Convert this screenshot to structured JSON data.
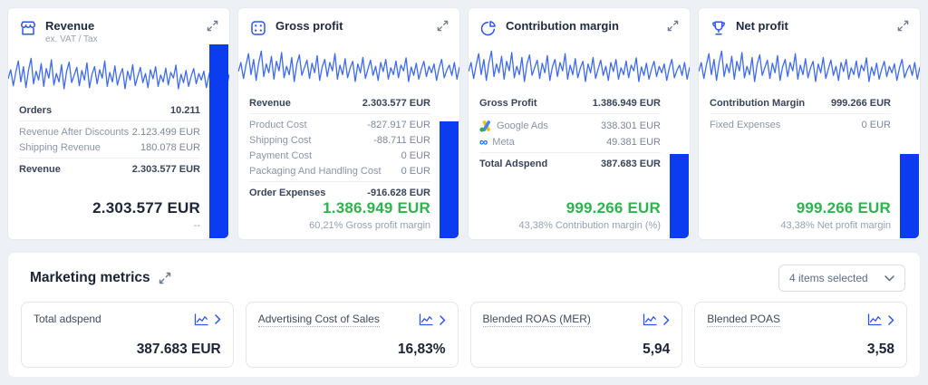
{
  "theme": {
    "accent_blue": "#2f54eb",
    "bar_blue": "#0c3cf0",
    "sparkline_blue": "#3e6af2",
    "positive_green": "#2eb350",
    "dark_text": "#1d2637",
    "muted_icon": "#6e7a8f",
    "google_yellow": "#FBBC04",
    "google_blue": "#4285F4",
    "google_green": "#34A853",
    "meta_blue": "#0866FF"
  },
  "kpi_cards": [
    {
      "title": "Revenue",
      "subtitle": "ex. VAT / Tax",
      "icon": "storefront-icon",
      "bar_percent": 100,
      "rows": [
        {
          "label": "Orders",
          "value": "10.211",
          "bold": true
        },
        {
          "label": "Revenue After Discounts",
          "value": "2.123.499 EUR"
        },
        {
          "label": "Shipping Revenue",
          "value": "180.078 EUR"
        },
        {
          "label": "Revenue",
          "value": "2.303.577 EUR",
          "bold": true
        }
      ],
      "total": "2.303.577 EUR",
      "total_color": "#1d2637",
      "total_sub": "--"
    },
    {
      "title": "Gross profit",
      "icon": "calculator-icon",
      "bar_percent": 60.21,
      "rows": [
        {
          "label": "Revenue",
          "value": "2.303.577 EUR",
          "bold": true
        },
        {
          "label": "Product Cost",
          "value": "-827.917 EUR"
        },
        {
          "label": "Shipping Cost",
          "value": "-88.711 EUR"
        },
        {
          "label": "Payment Cost",
          "value": "0 EUR"
        },
        {
          "label": "Packaging And Handling Cost",
          "value": "0 EUR"
        },
        {
          "label": "Order Expenses",
          "value": "-916.628 EUR",
          "bold": true
        }
      ],
      "total": "1.386.949 EUR",
      "total_color": "#2eb350",
      "total_sub": "60,21% Gross profit margin"
    },
    {
      "title": "Contribution margin",
      "icon": "pie-chart-icon",
      "bar_percent": 43.38,
      "rows": [
        {
          "label": "Gross Profit",
          "value": "1.386.949 EUR",
          "bold": true
        },
        {
          "label": "Google Ads",
          "value": "338.301 EUR",
          "icon": "google-ads-icon"
        },
        {
          "label": "Meta",
          "value": "49.381 EUR",
          "icon": "meta-icon"
        },
        {
          "label": "Total Adspend",
          "value": "387.683 EUR",
          "bold": true
        }
      ],
      "total": "999.266 EUR",
      "total_color": "#2eb350",
      "total_sub": "43,38% Contribution margin (%)"
    },
    {
      "title": "Net profit",
      "icon": "trophy-icon",
      "bar_percent": 43.38,
      "rows": [
        {
          "label": "Contribution Margin",
          "value": "999.266 EUR",
          "bold": true
        },
        {
          "label": "Fixed Expenses",
          "value": "0 EUR"
        }
      ],
      "total": "999.266 EUR",
      "total_color": "#2eb350",
      "total_sub": "43,38% Net profit margin"
    }
  ],
  "marketing": {
    "title": "Marketing metrics",
    "dropdown_label": "4 items selected",
    "cards": [
      {
        "label": "Total adspend",
        "value": "387.683 EUR",
        "underlined": false
      },
      {
        "label": "Advertising Cost of Sales",
        "value": "16,83%",
        "underlined": true
      },
      {
        "label": "Blended ROAS (MER)",
        "value": "5,94",
        "underlined": true
      },
      {
        "label": "Blended POAS",
        "value": "3,58",
        "underlined": true
      }
    ]
  },
  "sparkline": [
    38,
    62,
    20,
    55,
    85,
    30,
    70,
    15,
    60,
    92,
    25,
    58,
    35,
    78,
    18,
    65,
    40,
    88,
    22,
    52,
    30,
    75,
    12,
    58,
    82,
    28,
    48,
    68,
    20,
    60,
    35,
    80,
    15,
    50,
    70,
    25,
    62,
    40,
    85,
    18,
    55,
    30,
    72,
    22,
    48,
    65,
    12,
    58,
    35,
    75,
    20,
    45,
    68,
    28,
    52,
    15,
    62,
    38,
    70,
    18,
    48,
    30,
    66,
    22,
    55,
    40,
    74,
    12,
    50,
    28,
    60,
    18,
    45,
    65,
    25,
    52,
    35,
    58,
    15,
    48,
    70,
    22,
    42,
    55,
    28,
    62,
    18,
    50
  ]
}
